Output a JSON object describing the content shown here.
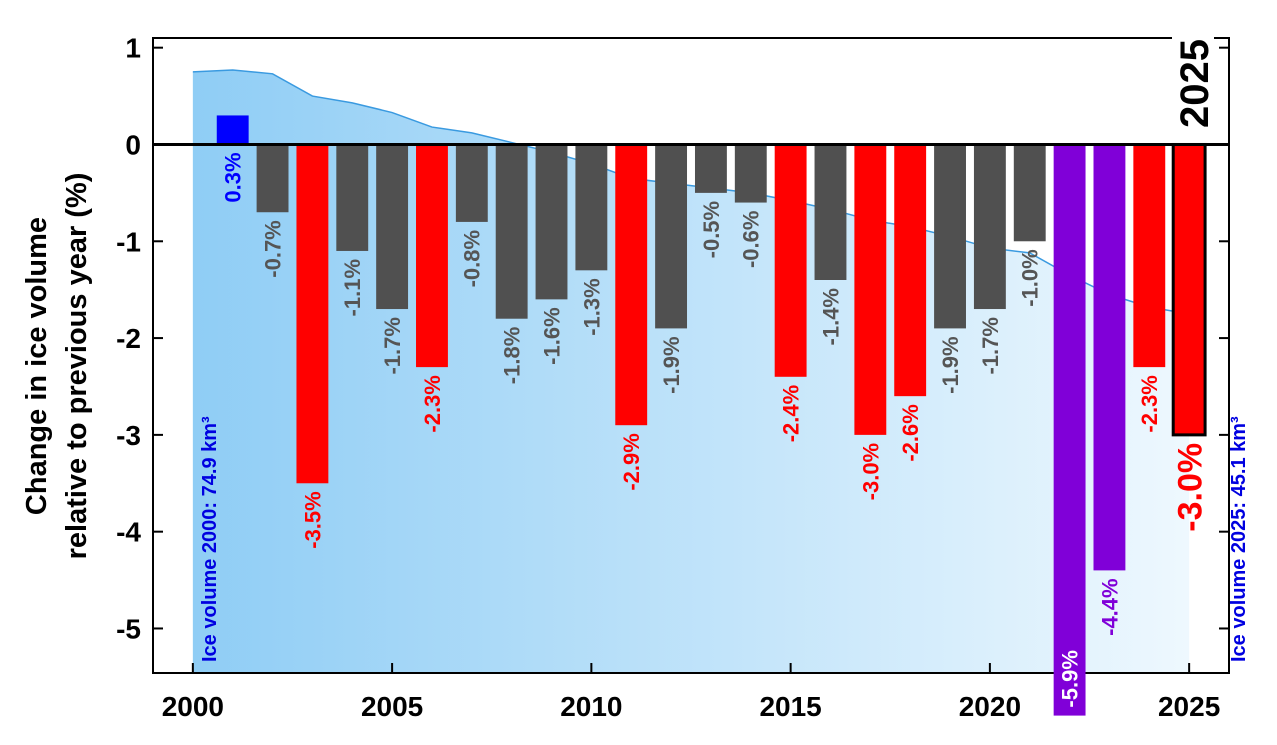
{
  "chart_data": {
    "type": "bar",
    "y_label": [
      "Change in ice volume",
      "relative to previous year (%)"
    ],
    "annotation": "2025",
    "note_left": "Ice volume 2000: 74.9 km³",
    "note_right": "Ice volume 2025: 45.1 km³",
    "x": [
      2001,
      2002,
      2003,
      2004,
      2005,
      2006,
      2007,
      2008,
      2009,
      2010,
      2011,
      2012,
      2013,
      2014,
      2015,
      2016,
      2017,
      2018,
      2019,
      2020,
      2021,
      2022,
      2023,
      2024,
      2025
    ],
    "values": [
      0.3,
      -0.7,
      -3.5,
      -1.1,
      -1.7,
      -2.3,
      -0.8,
      -1.8,
      -1.6,
      -1.3,
      -2.9,
      -1.9,
      -0.5,
      -0.6,
      -2.4,
      -1.4,
      -3.0,
      -2.6,
      -1.9,
      -1.7,
      -1.0,
      -5.9,
      -4.4,
      -2.3,
      -3.0
    ],
    "value_labels": [
      "0.3%",
      "-0.7%",
      "-3.5%",
      "-1.1%",
      "-1.7%",
      "-2.3%",
      "-0.8%",
      "-1.8%",
      "-1.6%",
      "-1.3%",
      "-2.9%",
      "-1.9%",
      "-0.5%",
      "-0.6%",
      "-2.4%",
      "-1.4%",
      "-3.0%",
      "-2.6%",
      "-1.9%",
      "-1.7%",
      "-1.0%",
      "-5.9%",
      "-4.4%",
      "-2.3%",
      "-3.0%"
    ],
    "colors": [
      "#0000ff",
      "#505050",
      "#ff0000",
      "#505050",
      "#505050",
      "#ff0000",
      "#505050",
      "#505050",
      "#505050",
      "#505050",
      "#ff0000",
      "#505050",
      "#505050",
      "#505050",
      "#ff0000",
      "#505050",
      "#ff0000",
      "#ff0000",
      "#505050",
      "#505050",
      "#505050",
      "#8000d8",
      "#8000d8",
      "#ff0000",
      "#ff0000"
    ],
    "volume_curve": {
      "color": "#3a9ae0",
      "x": [
        2000,
        2001,
        2002,
        2003,
        2004,
        2005,
        2006,
        2007,
        2008,
        2009,
        2010,
        2011,
        2012,
        2013,
        2014,
        2015,
        2016,
        2017,
        2018,
        2019,
        2020,
        2021,
        2022,
        2023,
        2024,
        2025
      ],
      "values": [
        0.75,
        0.77,
        0.73,
        0.5,
        0.43,
        0.33,
        0.18,
        0.12,
        0.02,
        -0.08,
        -0.2,
        -0.35,
        -0.4,
        -0.45,
        -0.5,
        -0.58,
        -0.67,
        -0.78,
        -0.85,
        -0.95,
        -1.07,
        -1.12,
        -1.35,
        -1.55,
        -1.68,
        -1.75
      ]
    },
    "xlim": [
      1999,
      2026
    ],
    "ylim": [
      -5.46,
      1.1
    ],
    "xticks": [
      2000,
      2005,
      2010,
      2015,
      2020,
      2025
    ],
    "yticks": [
      1,
      0,
      -1,
      -2,
      -3,
      -4,
      -5
    ]
  }
}
